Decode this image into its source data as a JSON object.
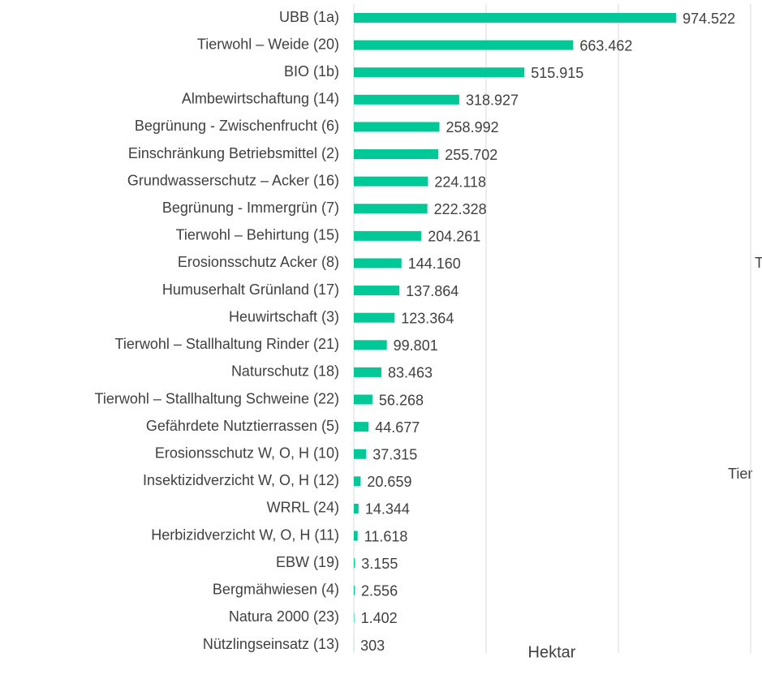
{
  "chart_data": {
    "type": "bar",
    "orientation": "horizontal",
    "categories": [
      "UBB (1a)",
      "Tierwohl – Weide (20)",
      "BIO (1b)",
      "Almbewirtschaftung (14)",
      "Begrünung - Zwischenfrucht (6)",
      "Einschränkung Betriebsmittel (2)",
      "Grundwasserschutz – Acker (16)",
      "Begrünung - Immergrün (7)",
      "Tierwohl – Behirtung (15)",
      "Erosionsschutz Acker (8)",
      "Humuserhalt Grünland (17)",
      "Heuwirtschaft (3)",
      "Tierwohl – Stallhaltung Rinder (21)",
      "Naturschutz (18)",
      "Tierwohl – Stallhaltung Schweine (22)",
      "Gefährdete Nutztierrassen (5)",
      "Erosionsschutz W, O, H (10)",
      "Insektizidverzicht W, O, H  (12)",
      "WRRL (24)",
      "Herbizidverzicht W, O, H  (11)",
      "EBW (19)",
      "Bergmähwiesen (4)",
      "Natura 2000 (23)",
      "Nützlingseinsatz (13)"
    ],
    "values": [
      974522,
      663462,
      515915,
      318927,
      258992,
      255702,
      224118,
      222328,
      204261,
      144160,
      137864,
      123364,
      99801,
      83463,
      56268,
      44677,
      37315,
      20659,
      14344,
      11618,
      3155,
      2556,
      1402,
      303
    ],
    "value_labels": [
      "974.522",
      "663.462",
      "515.915",
      "318.927",
      "258.992",
      "255.702",
      "224.118",
      "222.328",
      "204.261",
      "144.160",
      "137.864",
      "123.364",
      "99.801",
      "83.463",
      "56.268",
      "44.677",
      "37.315",
      "20.659",
      "14.344",
      "11.618",
      "3.155",
      "2.556",
      "1.402",
      "303"
    ],
    "color": "#00c896",
    "xlabel": "Hektar",
    "xlim": [
      0,
      1200000
    ],
    "xticks": [
      0,
      400000,
      800000,
      1200000
    ],
    "grid": true,
    "annotations": [
      "T",
      "Tier"
    ]
  }
}
